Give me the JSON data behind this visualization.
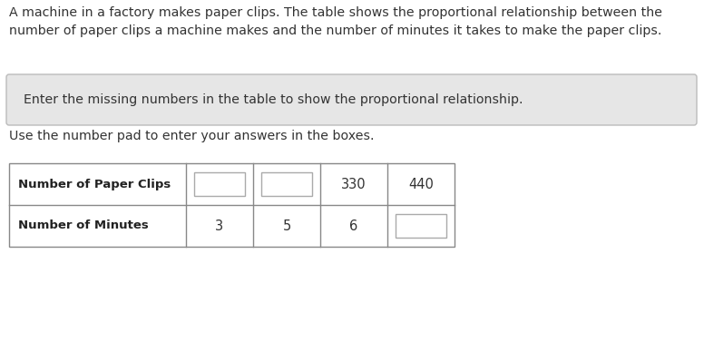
{
  "title_text": "A machine in a factory makes paper clips. The table shows the proportional relationship between the\nnumber of paper clips a machine makes and the number of minutes it takes to make the paper clips.",
  "instruction_box_text": "Enter the missing numbers in the table to show the proportional relationship.",
  "subtext": "Use the number pad to enter your answers in the boxes.",
  "row1_label": "Number of Paper Clips",
  "row2_label": "Number of Minutes",
  "row1_values": [
    "",
    "",
    "330",
    "440"
  ],
  "row2_values": [
    "3",
    "5",
    "6",
    ""
  ],
  "row1_is_blank": [
    true,
    true,
    false,
    false
  ],
  "row2_is_blank": [
    false,
    false,
    false,
    true
  ],
  "bg_color": "#ffffff",
  "instruction_box_bg": "#e6e6e6",
  "instruction_box_border": "#bbbbbb",
  "table_border_color": "#888888",
  "header_font_size": 9.5,
  "cell_font_size": 10.5,
  "title_font_size": 10.2,
  "instruction_font_size": 10.2,
  "subtext_font_size": 10.2
}
